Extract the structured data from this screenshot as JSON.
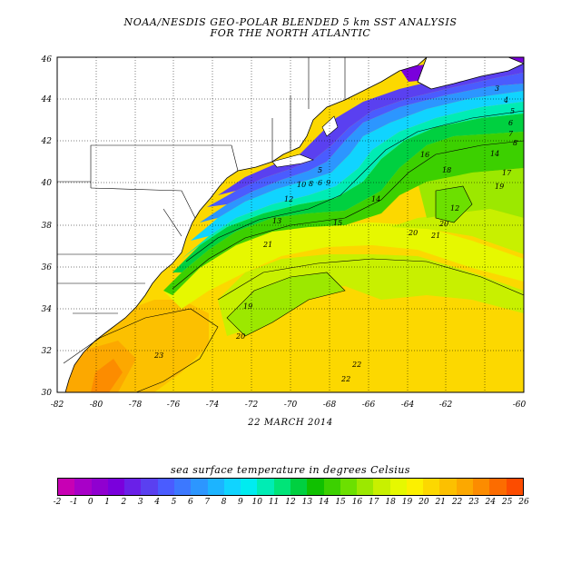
{
  "title_line1": "NOAA/NESDIS GEO-POLAR BLENDED 5 km SST ANALYSIS",
  "title_line2": "FOR THE NORTH ATLANTIC",
  "date": "22 MARCH 2014",
  "colorbar_title": "sea surface temperature in degrees Celsius",
  "lon_labels": [
    "-82",
    "-80",
    "-78",
    "-76",
    "-74",
    "-72",
    "-70",
    "-68",
    "-66",
    "-64",
    "-62",
    "-60"
  ],
  "lat_labels": [
    "30",
    "32",
    "34",
    "36",
    "38",
    "40",
    "42",
    "44",
    "46"
  ],
  "contour_labels": [
    "5",
    "10",
    "8",
    "6",
    "9",
    "12",
    "13",
    "14",
    "15",
    "18",
    "16",
    "17",
    "14",
    "19",
    "20",
    "20",
    "21",
    "21",
    "22",
    "19",
    "20",
    "23",
    "22",
    "12",
    "3",
    "4",
    "5",
    "6",
    "7",
    "8"
  ],
  "colorbar_values": [
    "-2",
    "-1",
    "0",
    "1",
    "2",
    "3",
    "4",
    "5",
    "6",
    "7",
    "8",
    "9",
    "10",
    "11",
    "12",
    "13",
    "14",
    "15",
    "16",
    "17",
    "18",
    "19",
    "20",
    "21",
    "22",
    "23",
    "24",
    "25",
    "26"
  ],
  "colorbar_colors": [
    "#c800b4",
    "#a800c8",
    "#9000d0",
    "#7a00dc",
    "#6a20e8",
    "#5a40f0",
    "#4a5cff",
    "#3c78ff",
    "#2c96ff",
    "#1cb4ff",
    "#10d4ff",
    "#00ecf0",
    "#00ecb4",
    "#00e478",
    "#00d040",
    "#10c000",
    "#3cd000",
    "#6ce000",
    "#9ce800",
    "#c8f000",
    "#e6f800",
    "#fcf000",
    "#fcd800",
    "#fcc000",
    "#fca800",
    "#fc8c00",
    "#fc6c00",
    "#fc4c00"
  ]
}
